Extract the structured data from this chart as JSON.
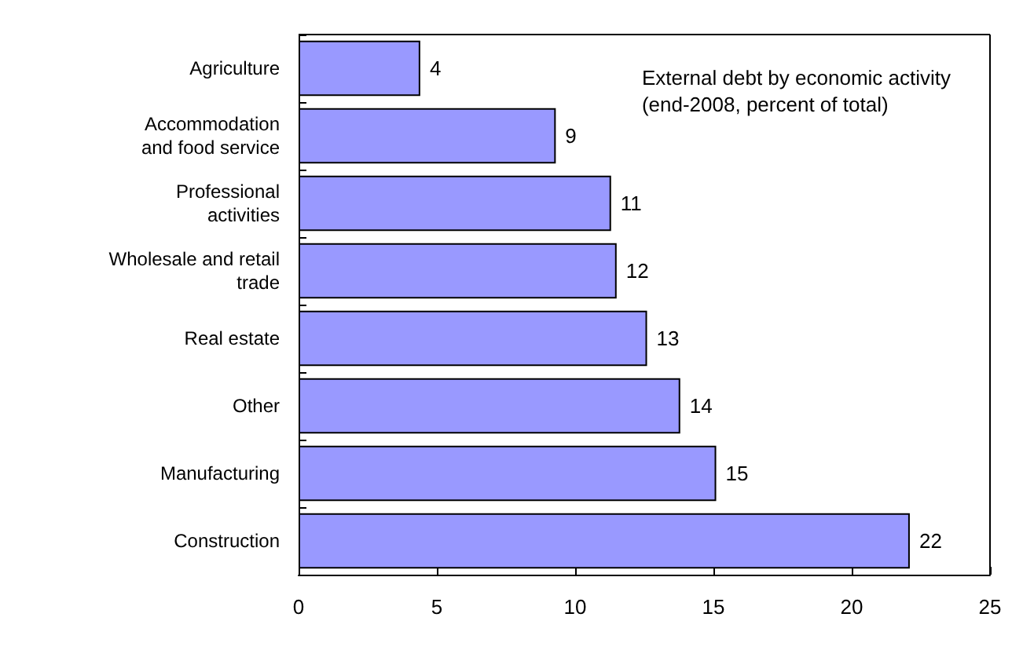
{
  "chart_data": {
    "type": "bar",
    "orientation": "horizontal",
    "title": "External debt by economic activity\n(end-2008, percent of total)",
    "categories": [
      "Agriculture",
      "Accommodation\nand food service",
      "Professional\nactivities",
      "Wholesale and retail\ntrade",
      "Real estate",
      "Other",
      "Manufacturing",
      "Construction"
    ],
    "values": [
      4.4,
      9.3,
      11.3,
      11.5,
      12.6,
      13.8,
      15.1,
      22.1
    ],
    "value_labels": [
      "4",
      "9",
      "11",
      "12",
      "13",
      "14",
      "15",
      "22"
    ],
    "color": "#9999ff",
    "xlim": [
      0,
      25
    ],
    "xticks": [
      0,
      5,
      10,
      15,
      20,
      25
    ],
    "grid": false
  }
}
